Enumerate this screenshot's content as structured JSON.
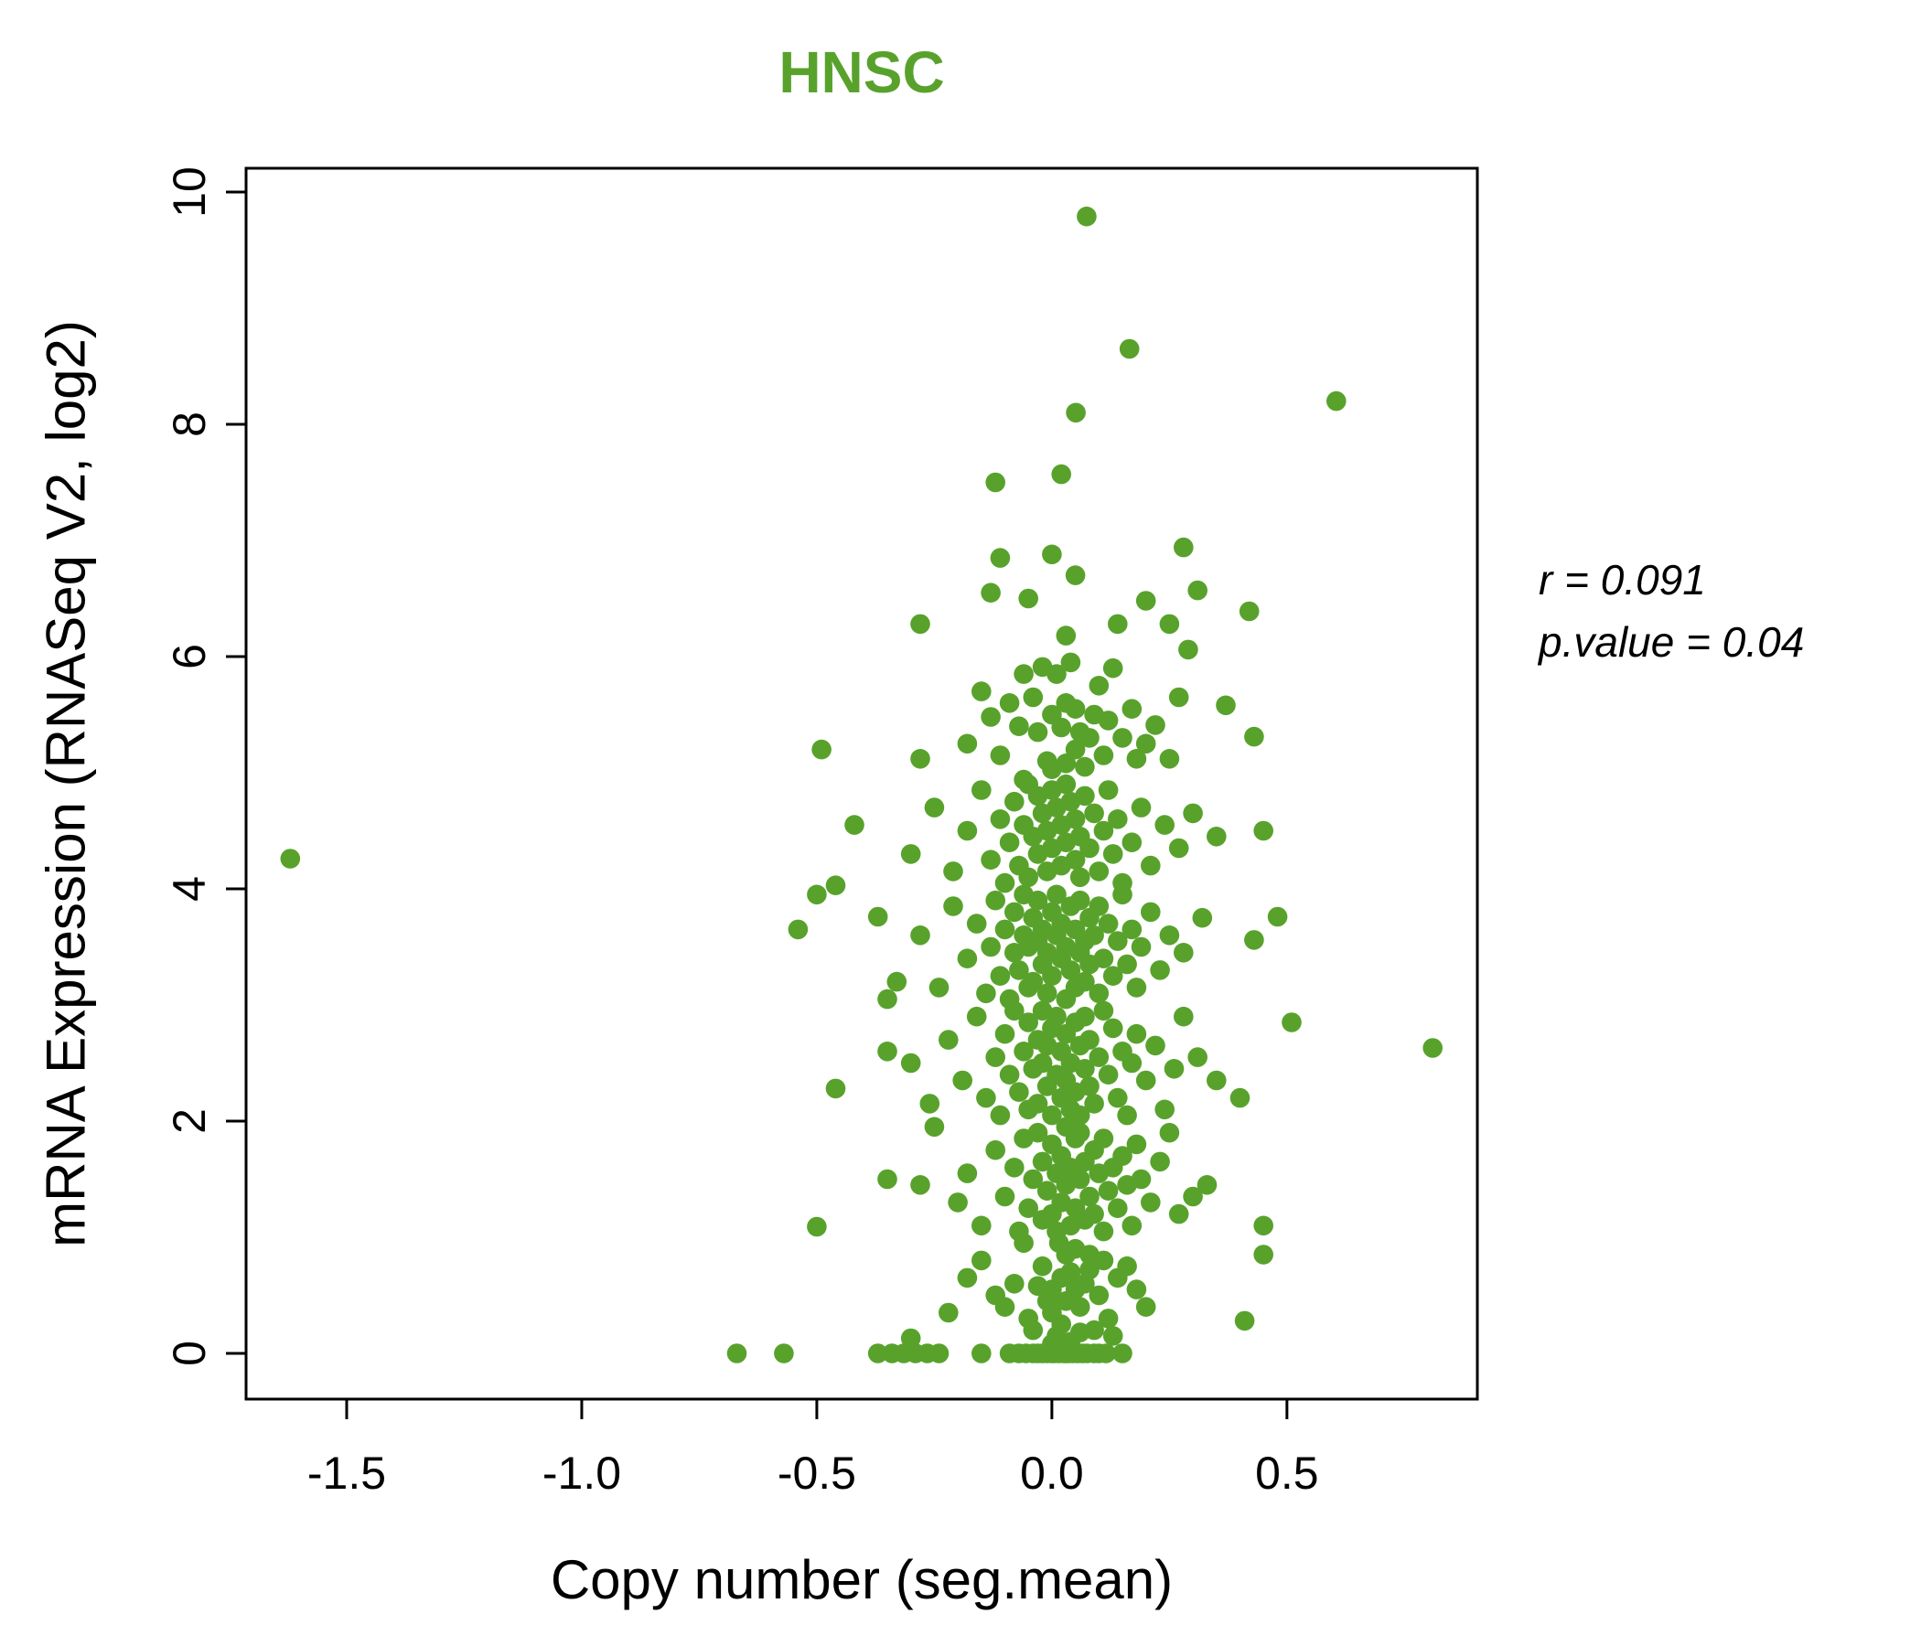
{
  "title": {
    "text": "HNSC",
    "color": "#58a22c"
  },
  "annotation": {
    "line1": "r = 0.091",
    "line2": "p.value = 0.04"
  },
  "chart_data": {
    "type": "scatter",
    "title": "HNSC",
    "xlabel": "Copy number (seg.mean)",
    "ylabel": "mRNA Expression (RNASeq V2, log2)",
    "xlim": [
      -1.714,
      0.905
    ],
    "ylim": [
      -0.394,
      10.205
    ],
    "x_ticks": [
      -1.5,
      -1.0,
      -0.5,
      0.0,
      0.5
    ],
    "x_tick_labels": [
      "-1.5",
      "-1.0",
      "-0.5",
      "0.0",
      "0.5"
    ],
    "y_ticks": [
      0,
      2,
      4,
      6,
      8,
      10
    ],
    "y_tick_labels": [
      "0",
      "2",
      "4",
      "6",
      "8",
      "10"
    ],
    "grid": false,
    "legend": "none",
    "point_color": "#58a22c",
    "point_radius_px": 10.8,
    "stats": {
      "r": 0.091,
      "p_value": 0.04
    },
    "points": [
      [
        -0.67,
        0
      ],
      [
        -0.57,
        0
      ],
      [
        -0.37,
        0
      ],
      [
        -0.34,
        0
      ],
      [
        -0.315,
        0
      ],
      [
        -0.29,
        0
      ],
      [
        -0.265,
        0
      ],
      [
        -0.24,
        0
      ],
      [
        -0.15,
        0
      ],
      [
        -0.09,
        0
      ],
      [
        -0.07,
        0
      ],
      [
        -0.055,
        0
      ],
      [
        -0.04,
        0
      ],
      [
        -0.03,
        0
      ],
      [
        -0.02,
        0
      ],
      [
        -0.01,
        0
      ],
      [
        0,
        0
      ],
      [
        0.005,
        0
      ],
      [
        0.015,
        0
      ],
      [
        0.025,
        0
      ],
      [
        0.035,
        0
      ],
      [
        0.045,
        0
      ],
      [
        0.055,
        0
      ],
      [
        0.065,
        0
      ],
      [
        0.075,
        0
      ],
      [
        0.09,
        0
      ],
      [
        0.1,
        0
      ],
      [
        0.115,
        0
      ],
      [
        0.15,
        0
      ],
      [
        0.03,
        0
      ],
      [
        -0.3,
        0.13
      ],
      [
        0.41,
        0.28
      ],
      [
        -0.12,
        0.5
      ],
      [
        -0.05,
        0.3
      ],
      [
        0,
        0.55
      ],
      [
        0.02,
        0.25
      ],
      [
        0.04,
        0.7
      ],
      [
        0.06,
        0.4
      ],
      [
        0.08,
        0.85
      ],
      [
        -0.02,
        0.75
      ],
      [
        -0.08,
        0.6
      ],
      [
        0.1,
        0.5
      ],
      [
        0.12,
        0.3
      ],
      [
        0.14,
        0.65
      ],
      [
        -0.15,
        0.8
      ],
      [
        0.01,
        0.15
      ],
      [
        0.03,
        0.45
      ],
      [
        0.05,
        0.9
      ],
      [
        -0.04,
        0.2
      ],
      [
        0.07,
        0.6
      ],
      [
        0,
        0.35
      ],
      [
        -0.06,
        0.95
      ],
      [
        0.16,
        0.75
      ],
      [
        0.02,
        0.65
      ],
      [
        0.09,
        0.2
      ],
      [
        -0.1,
        0.4
      ],
      [
        0.18,
        0.55
      ],
      [
        0.45,
        0.85
      ],
      [
        -0.22,
        0.35
      ],
      [
        0.11,
        0.8
      ],
      [
        0,
        0.08
      ],
      [
        0.05,
        0.55
      ],
      [
        -0.01,
        0.45
      ],
      [
        0.13,
        0.15
      ],
      [
        0.03,
        0.85
      ],
      [
        -0.18,
        0.65
      ],
      [
        0.2,
        0.4
      ],
      [
        0.06,
        0.18
      ],
      [
        -0.03,
        0.58
      ],
      [
        0.08,
        0.72
      ],
      [
        0.015,
        0.95
      ],
      [
        0.04,
        0.1
      ],
      [
        -0.5,
        1.09
      ],
      [
        0.33,
        1.45
      ],
      [
        0.3,
        1.35
      ],
      [
        0.45,
        1.1
      ],
      [
        -0.35,
        1.5
      ],
      [
        -0.28,
        1.45
      ],
      [
        -0.2,
        1.3
      ],
      [
        -0.18,
        1.55
      ],
      [
        -0.15,
        1.1
      ],
      [
        -0.12,
        1.75
      ],
      [
        -0.1,
        1.35
      ],
      [
        -0.08,
        1.6
      ],
      [
        -0.07,
        1.05
      ],
      [
        -0.06,
        1.85
      ],
      [
        -0.05,
        1.25
      ],
      [
        -0.04,
        1.5
      ],
      [
        -0.03,
        1.9
      ],
      [
        -0.02,
        1.15
      ],
      [
        -0.02,
        1.65
      ],
      [
        -0.01,
        1.4
      ],
      [
        0,
        1.8
      ],
      [
        0,
        1.2
      ],
      [
        0.01,
        1.55
      ],
      [
        0.01,
        1.05
      ],
      [
        0.02,
        1.7
      ],
      [
        0.02,
        1.3
      ],
      [
        0.03,
        1.95
      ],
      [
        0.03,
        1.45
      ],
      [
        0.04,
        1.1
      ],
      [
        0.04,
        1.6
      ],
      [
        0.05,
        1.85
      ],
      [
        0.05,
        1.25
      ],
      [
        0.06,
        1.5
      ],
      [
        0.06,
        1.9
      ],
      [
        0.07,
        1.15
      ],
      [
        0.07,
        1.65
      ],
      [
        0.08,
        1.35
      ],
      [
        0.09,
        1.75
      ],
      [
        0.09,
        1.2
      ],
      [
        0.1,
        1.55
      ],
      [
        0.11,
        1.05
      ],
      [
        0.11,
        1.85
      ],
      [
        0.12,
        1.4
      ],
      [
        0.13,
        1.6
      ],
      [
        0.14,
        1.25
      ],
      [
        0.15,
        1.7
      ],
      [
        0.16,
        1.45
      ],
      [
        0.17,
        1.1
      ],
      [
        0.18,
        1.8
      ],
      [
        0.19,
        1.5
      ],
      [
        0.21,
        1.3
      ],
      [
        0.23,
        1.65
      ],
      [
        0.25,
        1.9
      ],
      [
        0.27,
        1.2
      ],
      [
        -0.25,
        1.95
      ],
      [
        -0.46,
        2.28
      ],
      [
        0.81,
        2.63
      ],
      [
        0.51,
        2.85
      ],
      [
        0.4,
        2.2
      ],
      [
        0.35,
        2.35
      ],
      [
        -0.3,
        2.5
      ],
      [
        -0.26,
        2.15
      ],
      [
        -0.22,
        2.7
      ],
      [
        -0.19,
        2.35
      ],
      [
        -0.16,
        2.9
      ],
      [
        -0.14,
        2.2
      ],
      [
        -0.12,
        2.55
      ],
      [
        -0.11,
        2.05
      ],
      [
        -0.1,
        2.75
      ],
      [
        -0.09,
        2.4
      ],
      [
        -0.08,
        2.95
      ],
      [
        -0.07,
        2.25
      ],
      [
        -0.06,
        2.6
      ],
      [
        -0.05,
        2.1
      ],
      [
        -0.05,
        2.85
      ],
      [
        -0.04,
        2.45
      ],
      [
        -0.03,
        2.7
      ],
      [
        -0.03,
        2.15
      ],
      [
        -0.02,
        2.5
      ],
      [
        -0.02,
        2.95
      ],
      [
        -0.01,
        2.3
      ],
      [
        -0.01,
        2.65
      ],
      [
        0,
        2.05
      ],
      [
        0,
        2.8
      ],
      [
        0.01,
        2.4
      ],
      [
        0.01,
        2.9
      ],
      [
        0.02,
        2.2
      ],
      [
        0.02,
        2.6
      ],
      [
        0.03,
        2.35
      ],
      [
        0.03,
        2.75
      ],
      [
        0.04,
        2.1
      ],
      [
        0.04,
        2.5
      ],
      [
        0.05,
        2.85
      ],
      [
        0.05,
        2.25
      ],
      [
        0.06,
        2.65
      ],
      [
        0.06,
        2.05
      ],
      [
        0.07,
        2.45
      ],
      [
        0.07,
        2.9
      ],
      [
        0.08,
        2.3
      ],
      [
        0.08,
        2.7
      ],
      [
        0.09,
        2.15
      ],
      [
        0.1,
        2.55
      ],
      [
        0.11,
        2.95
      ],
      [
        0.12,
        2.4
      ],
      [
        0.13,
        2.8
      ],
      [
        0.14,
        2.2
      ],
      [
        0.15,
        2.6
      ],
      [
        0.16,
        2.05
      ],
      [
        0.17,
        2.5
      ],
      [
        0.18,
        2.75
      ],
      [
        0.2,
        2.35
      ],
      [
        0.22,
        2.65
      ],
      [
        0.24,
        2.1
      ],
      [
        0.26,
        2.45
      ],
      [
        0.28,
        2.9
      ],
      [
        0.31,
        2.55
      ],
      [
        -0.35,
        2.6
      ],
      [
        -0.54,
        3.65
      ],
      [
        -0.37,
        3.76
      ],
      [
        -0.35,
        3.05
      ],
      [
        0.48,
        3.76
      ],
      [
        0.43,
        3.56
      ],
      [
        -0.33,
        3.2
      ],
      [
        -0.28,
        3.6
      ],
      [
        -0.24,
        3.15
      ],
      [
        -0.21,
        3.85
      ],
      [
        -0.18,
        3.4
      ],
      [
        -0.16,
        3.7
      ],
      [
        -0.14,
        3.1
      ],
      [
        -0.13,
        3.5
      ],
      [
        -0.12,
        3.9
      ],
      [
        -0.11,
        3.25
      ],
      [
        -0.1,
        3.65
      ],
      [
        -0.09,
        3.05
      ],
      [
        -0.08,
        3.45
      ],
      [
        -0.08,
        3.8
      ],
      [
        -0.07,
        3.3
      ],
      [
        -0.06,
        3.6
      ],
      [
        -0.06,
        3.95
      ],
      [
        -0.05,
        3.15
      ],
      [
        -0.05,
        3.5
      ],
      [
        -0.04,
        3.75
      ],
      [
        -0.04,
        3.2
      ],
      [
        -0.03,
        3.55
      ],
      [
        -0.03,
        3.9
      ],
      [
        -0.02,
        3.35
      ],
      [
        -0.02,
        3.65
      ],
      [
        -0.01,
        3.1
      ],
      [
        -0.01,
        3.45
      ],
      [
        0,
        3.8
      ],
      [
        0,
        3.25
      ],
      [
        0.01,
        3.6
      ],
      [
        0.01,
        3.95
      ],
      [
        0.02,
        3.4
      ],
      [
        0.02,
        3.7
      ],
      [
        0.03,
        3.05
      ],
      [
        0.03,
        3.5
      ],
      [
        0.04,
        3.85
      ],
      [
        0.04,
        3.3
      ],
      [
        0.05,
        3.65
      ],
      [
        0.05,
        3.15
      ],
      [
        0.06,
        3.45
      ],
      [
        0.06,
        3.9
      ],
      [
        0.07,
        3.55
      ],
      [
        0.07,
        3.2
      ],
      [
        0.08,
        3.75
      ],
      [
        0.08,
        3.35
      ],
      [
        0.09,
        3.6
      ],
      [
        0.1,
        3.1
      ],
      [
        0.1,
        3.85
      ],
      [
        0.11,
        3.4
      ],
      [
        0.12,
        3.7
      ],
      [
        0.13,
        3.25
      ],
      [
        0.14,
        3.55
      ],
      [
        0.15,
        3.95
      ],
      [
        0.16,
        3.35
      ],
      [
        0.17,
        3.65
      ],
      [
        0.18,
        3.15
      ],
      [
        0.19,
        3.5
      ],
      [
        0.21,
        3.8
      ],
      [
        0.23,
        3.3
      ],
      [
        0.25,
        3.6
      ],
      [
        0.28,
        3.45
      ],
      [
        0.32,
        3.75
      ],
      [
        -1.62,
        4.26
      ],
      [
        -0.42,
        4.55
      ],
      [
        -0.46,
        4.03
      ],
      [
        -0.5,
        3.95
      ],
      [
        0.45,
        4.5
      ],
      [
        -0.06,
        4.94
      ],
      [
        -0.3,
        4.3
      ],
      [
        -0.25,
        4.7
      ],
      [
        -0.21,
        4.15
      ],
      [
        -0.18,
        4.5
      ],
      [
        -0.15,
        4.85
      ],
      [
        -0.13,
        4.25
      ],
      [
        -0.11,
        4.6
      ],
      [
        -0.1,
        4.05
      ],
      [
        -0.09,
        4.4
      ],
      [
        -0.08,
        4.75
      ],
      [
        -0.07,
        4.2
      ],
      [
        -0.06,
        4.55
      ],
      [
        -0.05,
        4.9
      ],
      [
        -0.05,
        4.1
      ],
      [
        -0.04,
        4.45
      ],
      [
        -0.03,
        4.8
      ],
      [
        -0.03,
        4.3
      ],
      [
        -0.02,
        4.65
      ],
      [
        -0.01,
        4.15
      ],
      [
        -0.01,
        4.5
      ],
      [
        0,
        4.85
      ],
      [
        0,
        4.35
      ],
      [
        0.01,
        4.7
      ],
      [
        0.02,
        4.2
      ],
      [
        0.02,
        4.55
      ],
      [
        0.03,
        4.9
      ],
      [
        0.03,
        4.4
      ],
      [
        0.04,
        4.75
      ],
      [
        0.05,
        4.25
      ],
      [
        0.05,
        4.6
      ],
      [
        0.06,
        4.1
      ],
      [
        0.06,
        4.45
      ],
      [
        0.07,
        4.8
      ],
      [
        0.08,
        4.35
      ],
      [
        0.09,
        4.65
      ],
      [
        0.1,
        4.15
      ],
      [
        0.11,
        4.5
      ],
      [
        0.12,
        4.85
      ],
      [
        0.13,
        4.3
      ],
      [
        0.14,
        4.6
      ],
      [
        0.15,
        4.05
      ],
      [
        0.17,
        4.4
      ],
      [
        0.19,
        4.7
      ],
      [
        0.21,
        4.2
      ],
      [
        0.24,
        4.55
      ],
      [
        0.27,
        4.35
      ],
      [
        0.3,
        4.65
      ],
      [
        0.35,
        4.45
      ],
      [
        -0.49,
        5.2
      ],
      [
        -0.28,
        5.12
      ],
      [
        -0.13,
        5.48
      ],
      [
        -0.09,
        5.6
      ],
      [
        -0.06,
        5.85
      ],
      [
        -0.03,
        5.35
      ],
      [
        -0.02,
        5.91
      ],
      [
        0,
        5.03
      ],
      [
        0,
        5.5
      ],
      [
        0.02,
        5.39
      ],
      [
        0.05,
        5.2
      ],
      [
        0.05,
        5.55
      ],
      [
        0.07,
        5.05
      ],
      [
        0.08,
        5.3
      ],
      [
        0.1,
        5.75
      ],
      [
        0.12,
        5.45
      ],
      [
        0.18,
        5.12
      ],
      [
        0.22,
        5.41
      ],
      [
        0.25,
        5.12
      ],
      [
        0.27,
        5.65
      ],
      [
        0.37,
        5.58
      ],
      [
        0.43,
        5.31
      ],
      [
        0.03,
        5.08
      ],
      [
        -0.18,
        5.25
      ],
      [
        -0.15,
        5.7
      ],
      [
        -0.11,
        5.15
      ],
      [
        -0.07,
        5.4
      ],
      [
        -0.04,
        5.65
      ],
      [
        -0.01,
        5.1
      ],
      [
        0.01,
        5.85
      ],
      [
        0.03,
        5.6
      ],
      [
        0.06,
        5.35
      ],
      [
        0.09,
        5.5
      ],
      [
        0.11,
        5.15
      ],
      [
        0.13,
        5.9
      ],
      [
        0.15,
        5.3
      ],
      [
        0.17,
        5.55
      ],
      [
        0.2,
        5.25
      ],
      [
        0.04,
        5.95
      ],
      [
        -0.28,
        6.28
      ],
      [
        -0.13,
        6.55
      ],
      [
        -0.11,
        6.85
      ],
      [
        -0.05,
        6.5
      ],
      [
        0,
        6.88
      ],
      [
        0.03,
        6.18
      ],
      [
        0.14,
        6.28
      ],
      [
        0.2,
        6.48
      ],
      [
        0.25,
        6.28
      ],
      [
        0.28,
        6.94
      ],
      [
        0.29,
        6.06
      ],
      [
        0.31,
        6.57
      ],
      [
        0.42,
        6.39
      ],
      [
        0.05,
        6.7
      ],
      [
        0.02,
        7.57
      ],
      [
        -0.12,
        7.5
      ],
      [
        0.051,
        8.1
      ],
      [
        0.165,
        8.65
      ],
      [
        0.605,
        8.2
      ],
      [
        0.074,
        9.79
      ]
    ]
  }
}
